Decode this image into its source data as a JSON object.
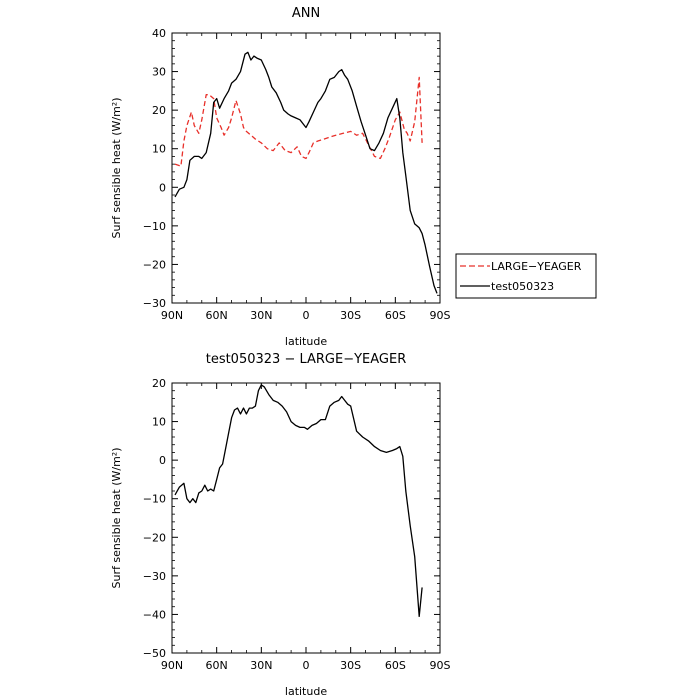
{
  "chart_data": [
    {
      "type": "line",
      "title": "ANN",
      "xlabel": "latitude",
      "ylabel": "Surf sensible heat (W/m²)",
      "xlim": [
        90,
        -90
      ],
      "ylim": [
        -30,
        40
      ],
      "x_ticks": [
        90,
        60,
        30,
        0,
        -30,
        -60,
        -90
      ],
      "x_tick_labels": [
        "90N",
        "60N",
        "30N",
        "0",
        "30S",
        "60S",
        "90S"
      ],
      "y_ticks": [
        -30,
        -20,
        -10,
        0,
        10,
        20,
        30,
        40
      ],
      "y_tick_labels": [
        "−30",
        "−20",
        "−10",
        "0",
        "10",
        "20",
        "30",
        "40"
      ],
      "legend": {
        "placement": "right-outside"
      },
      "series": [
        {
          "name": "LARGE−YEAGER",
          "color": "#e8302a",
          "dash": true,
          "x": [
            88,
            84,
            82,
            80,
            77,
            75,
            72,
            70,
            67,
            65,
            62,
            60,
            57,
            55,
            52,
            50,
            47,
            44,
            42,
            40,
            37,
            34,
            30,
            26,
            22,
            18,
            14,
            10,
            6,
            3,
            0,
            -2,
            -5,
            -8,
            -12,
            -16,
            -20,
            -25,
            -30,
            -34,
            -38,
            -42,
            -46,
            -50,
            -53,
            -56,
            -60,
            -63,
            -66,
            -68,
            -70,
            -73,
            -76,
            -78
          ],
          "y": [
            6,
            5.5,
            12,
            16,
            19.5,
            16,
            14,
            17.5,
            24,
            24,
            23,
            18,
            15.5,
            13.5,
            15.5,
            18,
            22.5,
            19,
            15.5,
            14.5,
            13.5,
            12.5,
            11.5,
            10,
            9.5,
            11.5,
            9.5,
            9,
            10.5,
            8,
            7.5,
            9,
            11.5,
            12,
            12.5,
            13,
            13.5,
            14,
            14.5,
            13.5,
            14,
            11,
            8,
            7.5,
            10,
            13,
            17.5,
            19.5,
            15,
            14,
            12,
            17,
            28.5,
            11.5
          ]
        },
        {
          "name": "test050323",
          "color": "#000000",
          "dash": false,
          "x": [
            88,
            85,
            82,
            80,
            78,
            75,
            72,
            70,
            67,
            64,
            62,
            60,
            58,
            55,
            52,
            50,
            47,
            44,
            41,
            39,
            37,
            35,
            33,
            30,
            27,
            25,
            23,
            20,
            17,
            15,
            12,
            10,
            7,
            4,
            1,
            0,
            -2,
            -5,
            -8,
            -10,
            -13,
            -16,
            -19,
            -22,
            -24,
            -26,
            -28,
            -31,
            -34,
            -37,
            -40,
            -43,
            -46,
            -49,
            -52,
            -55,
            -58,
            -61,
            -63,
            -65,
            -67,
            -70,
            -73,
            -76,
            -78,
            -80,
            -83,
            -86,
            -88
          ],
          "y": [
            -2.5,
            -0.5,
            0,
            2,
            7,
            8,
            8,
            7.5,
            9,
            14,
            22,
            23,
            20.5,
            23,
            25,
            27,
            28,
            30,
            34.5,
            35,
            33,
            34,
            33.5,
            33,
            30.5,
            28.5,
            26,
            24.5,
            22,
            20,
            19,
            18.5,
            18,
            17.5,
            16,
            15.5,
            17,
            19.5,
            22,
            23,
            25,
            28,
            28.5,
            30,
            30.5,
            29,
            28,
            25,
            21,
            17,
            13.5,
            10,
            9.5,
            11.5,
            14,
            18,
            20.5,
            23,
            18,
            9,
            3,
            -6,
            -9.5,
            -10.5,
            -12,
            -15,
            -20.5,
            -25.5,
            -27.5
          ]
        }
      ]
    },
    {
      "type": "line",
      "title": "test050323 − LARGE−YEAGER",
      "xlabel": "latitude",
      "ylabel": "Surf sensible heat (W/m²)",
      "xlim": [
        90,
        -90
      ],
      "ylim": [
        -50,
        20
      ],
      "x_ticks": [
        90,
        60,
        30,
        0,
        -30,
        -60,
        -90
      ],
      "x_tick_labels": [
        "90N",
        "60N",
        "30N",
        "0",
        "30S",
        "60S",
        "90S"
      ],
      "y_ticks": [
        -50,
        -40,
        -30,
        -20,
        -10,
        0,
        10,
        20
      ],
      "y_tick_labels": [
        "−50",
        "−40",
        "−30",
        "−20",
        "−10",
        "0",
        "10",
        "20"
      ],
      "series": [
        {
          "color": "#000000",
          "dash": false,
          "x": [
            88,
            85,
            82,
            80,
            78,
            76,
            74,
            72,
            70,
            68,
            66,
            64,
            62,
            60,
            58,
            56,
            54,
            52,
            50,
            48,
            46,
            44,
            42,
            40,
            38,
            36,
            34,
            32,
            30,
            28,
            25,
            22,
            19,
            16,
            13,
            10,
            7,
            4,
            1,
            -1,
            -4,
            -7,
            -10,
            -13,
            -16,
            -19,
            -22,
            -24,
            -26,
            -28,
            -30,
            -34,
            -38,
            -42,
            -46,
            -50,
            -54,
            -58,
            -61,
            -63,
            -65,
            -67,
            -70,
            -73,
            -76,
            -78
          ],
          "y": [
            -9,
            -7,
            -6,
            -10,
            -11,
            -10,
            -11,
            -8.5,
            -8,
            -6.5,
            -8,
            -7.5,
            -8,
            -5,
            -2,
            -1,
            3,
            7,
            11,
            13,
            13.5,
            12,
            13.5,
            12,
            13.5,
            13.5,
            14,
            18,
            19.5,
            19,
            17,
            15.5,
            15,
            14,
            12.5,
            10,
            9,
            8.5,
            8.5,
            8,
            9,
            9.5,
            10.5,
            10.5,
            14,
            15,
            15.5,
            16.5,
            15.5,
            14.5,
            14,
            7.5,
            6,
            5,
            3.5,
            2.5,
            2,
            2.5,
            3,
            3.5,
            1,
            -8,
            -17,
            -25,
            -40.5,
            -33
          ]
        }
      ]
    }
  ]
}
